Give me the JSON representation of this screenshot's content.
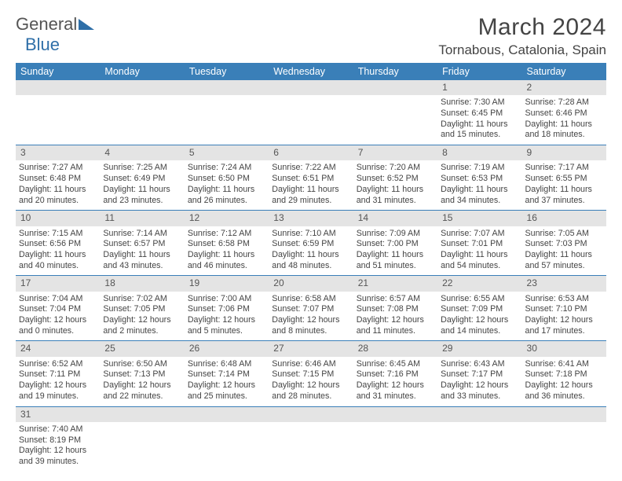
{
  "brand": {
    "part1": "General",
    "part2": "Blue"
  },
  "colors": {
    "header_bg": "#3a7fb8",
    "daynum_bg": "#e4e4e4",
    "text": "#444444",
    "brand_blue": "#2f6fa8"
  },
  "title": "March 2024",
  "location": "Tornabous, Catalonia, Spain",
  "weekdays": [
    "Sunday",
    "Monday",
    "Tuesday",
    "Wednesday",
    "Thursday",
    "Friday",
    "Saturday"
  ],
  "weeks": [
    {
      "nums": [
        "",
        "",
        "",
        "",
        "",
        "1",
        "2"
      ],
      "cells": [
        null,
        null,
        null,
        null,
        null,
        {
          "sunrise": "Sunrise: 7:30 AM",
          "sunset": "Sunset: 6:45 PM",
          "day1": "Daylight: 11 hours",
          "day2": "and 15 minutes."
        },
        {
          "sunrise": "Sunrise: 7:28 AM",
          "sunset": "Sunset: 6:46 PM",
          "day1": "Daylight: 11 hours",
          "day2": "and 18 minutes."
        }
      ]
    },
    {
      "nums": [
        "3",
        "4",
        "5",
        "6",
        "7",
        "8",
        "9"
      ],
      "cells": [
        {
          "sunrise": "Sunrise: 7:27 AM",
          "sunset": "Sunset: 6:48 PM",
          "day1": "Daylight: 11 hours",
          "day2": "and 20 minutes."
        },
        {
          "sunrise": "Sunrise: 7:25 AM",
          "sunset": "Sunset: 6:49 PM",
          "day1": "Daylight: 11 hours",
          "day2": "and 23 minutes."
        },
        {
          "sunrise": "Sunrise: 7:24 AM",
          "sunset": "Sunset: 6:50 PM",
          "day1": "Daylight: 11 hours",
          "day2": "and 26 minutes."
        },
        {
          "sunrise": "Sunrise: 7:22 AM",
          "sunset": "Sunset: 6:51 PM",
          "day1": "Daylight: 11 hours",
          "day2": "and 29 minutes."
        },
        {
          "sunrise": "Sunrise: 7:20 AM",
          "sunset": "Sunset: 6:52 PM",
          "day1": "Daylight: 11 hours",
          "day2": "and 31 minutes."
        },
        {
          "sunrise": "Sunrise: 7:19 AM",
          "sunset": "Sunset: 6:53 PM",
          "day1": "Daylight: 11 hours",
          "day2": "and 34 minutes."
        },
        {
          "sunrise": "Sunrise: 7:17 AM",
          "sunset": "Sunset: 6:55 PM",
          "day1": "Daylight: 11 hours",
          "day2": "and 37 minutes."
        }
      ]
    },
    {
      "nums": [
        "10",
        "11",
        "12",
        "13",
        "14",
        "15",
        "16"
      ],
      "cells": [
        {
          "sunrise": "Sunrise: 7:15 AM",
          "sunset": "Sunset: 6:56 PM",
          "day1": "Daylight: 11 hours",
          "day2": "and 40 minutes."
        },
        {
          "sunrise": "Sunrise: 7:14 AM",
          "sunset": "Sunset: 6:57 PM",
          "day1": "Daylight: 11 hours",
          "day2": "and 43 minutes."
        },
        {
          "sunrise": "Sunrise: 7:12 AM",
          "sunset": "Sunset: 6:58 PM",
          "day1": "Daylight: 11 hours",
          "day2": "and 46 minutes."
        },
        {
          "sunrise": "Sunrise: 7:10 AM",
          "sunset": "Sunset: 6:59 PM",
          "day1": "Daylight: 11 hours",
          "day2": "and 48 minutes."
        },
        {
          "sunrise": "Sunrise: 7:09 AM",
          "sunset": "Sunset: 7:00 PM",
          "day1": "Daylight: 11 hours",
          "day2": "and 51 minutes."
        },
        {
          "sunrise": "Sunrise: 7:07 AM",
          "sunset": "Sunset: 7:01 PM",
          "day1": "Daylight: 11 hours",
          "day2": "and 54 minutes."
        },
        {
          "sunrise": "Sunrise: 7:05 AM",
          "sunset": "Sunset: 7:03 PM",
          "day1": "Daylight: 11 hours",
          "day2": "and 57 minutes."
        }
      ]
    },
    {
      "nums": [
        "17",
        "18",
        "19",
        "20",
        "21",
        "22",
        "23"
      ],
      "cells": [
        {
          "sunrise": "Sunrise: 7:04 AM",
          "sunset": "Sunset: 7:04 PM",
          "day1": "Daylight: 12 hours",
          "day2": "and 0 minutes."
        },
        {
          "sunrise": "Sunrise: 7:02 AM",
          "sunset": "Sunset: 7:05 PM",
          "day1": "Daylight: 12 hours",
          "day2": "and 2 minutes."
        },
        {
          "sunrise": "Sunrise: 7:00 AM",
          "sunset": "Sunset: 7:06 PM",
          "day1": "Daylight: 12 hours",
          "day2": "and 5 minutes."
        },
        {
          "sunrise": "Sunrise: 6:58 AM",
          "sunset": "Sunset: 7:07 PM",
          "day1": "Daylight: 12 hours",
          "day2": "and 8 minutes."
        },
        {
          "sunrise": "Sunrise: 6:57 AM",
          "sunset": "Sunset: 7:08 PM",
          "day1": "Daylight: 12 hours",
          "day2": "and 11 minutes."
        },
        {
          "sunrise": "Sunrise: 6:55 AM",
          "sunset": "Sunset: 7:09 PM",
          "day1": "Daylight: 12 hours",
          "day2": "and 14 minutes."
        },
        {
          "sunrise": "Sunrise: 6:53 AM",
          "sunset": "Sunset: 7:10 PM",
          "day1": "Daylight: 12 hours",
          "day2": "and 17 minutes."
        }
      ]
    },
    {
      "nums": [
        "24",
        "25",
        "26",
        "27",
        "28",
        "29",
        "30"
      ],
      "cells": [
        {
          "sunrise": "Sunrise: 6:52 AM",
          "sunset": "Sunset: 7:11 PM",
          "day1": "Daylight: 12 hours",
          "day2": "and 19 minutes."
        },
        {
          "sunrise": "Sunrise: 6:50 AM",
          "sunset": "Sunset: 7:13 PM",
          "day1": "Daylight: 12 hours",
          "day2": "and 22 minutes."
        },
        {
          "sunrise": "Sunrise: 6:48 AM",
          "sunset": "Sunset: 7:14 PM",
          "day1": "Daylight: 12 hours",
          "day2": "and 25 minutes."
        },
        {
          "sunrise": "Sunrise: 6:46 AM",
          "sunset": "Sunset: 7:15 PM",
          "day1": "Daylight: 12 hours",
          "day2": "and 28 minutes."
        },
        {
          "sunrise": "Sunrise: 6:45 AM",
          "sunset": "Sunset: 7:16 PM",
          "day1": "Daylight: 12 hours",
          "day2": "and 31 minutes."
        },
        {
          "sunrise": "Sunrise: 6:43 AM",
          "sunset": "Sunset: 7:17 PM",
          "day1": "Daylight: 12 hours",
          "day2": "and 33 minutes."
        },
        {
          "sunrise": "Sunrise: 6:41 AM",
          "sunset": "Sunset: 7:18 PM",
          "day1": "Daylight: 12 hours",
          "day2": "and 36 minutes."
        }
      ]
    },
    {
      "nums": [
        "31",
        "",
        "",
        "",
        "",
        "",
        ""
      ],
      "cells": [
        {
          "sunrise": "Sunrise: 7:40 AM",
          "sunset": "Sunset: 8:19 PM",
          "day1": "Daylight: 12 hours",
          "day2": "and 39 minutes."
        },
        null,
        null,
        null,
        null,
        null,
        null
      ]
    }
  ]
}
